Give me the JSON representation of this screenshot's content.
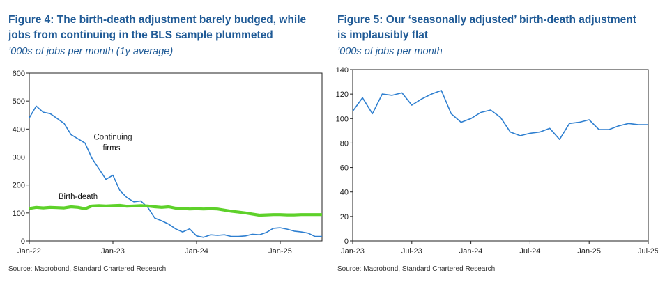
{
  "colors": {
    "title": "#1f5a96",
    "line_blue": "#2e7fd0",
    "line_green": "#5ed12a",
    "axis": "#222222"
  },
  "left": {
    "title": "Figure 4: The birth-death adjustment barely budged, while jobs from continuing in the BLS sample plummeted",
    "subtitle": "’000s of jobs per month (1y average)",
    "source": "Source: Macrobond, Standard Chartered Research",
    "annotations": {
      "continuing_line1": "Continuing",
      "continuing_line2": "firms",
      "birth_death": "Birth-death"
    }
  },
  "right": {
    "title": "Figure 5: Our ‘seasonally adjusted’ birth-death adjustment is implausibly flat",
    "subtitle": "’000s of jobs per month",
    "source": "Source: Macrobond, Standard Chartered Research"
  },
  "chart_data": [
    {
      "type": "line",
      "title": "Figure 4: The birth-death adjustment barely budged, while jobs from continuing in the BLS sample plummeted",
      "ylabel": "’000s of jobs per month (1y average)",
      "x": [
        "2022-01",
        "2022-02",
        "2022-03",
        "2022-04",
        "2022-05",
        "2022-06",
        "2022-07",
        "2022-08",
        "2022-09",
        "2022-10",
        "2022-11",
        "2022-12",
        "2023-01",
        "2023-02",
        "2023-03",
        "2023-04",
        "2023-05",
        "2023-06",
        "2023-07",
        "2023-08",
        "2023-09",
        "2023-10",
        "2023-11",
        "2023-12",
        "2024-01",
        "2024-02",
        "2024-03",
        "2024-04",
        "2024-05",
        "2024-06",
        "2024-07",
        "2024-08",
        "2024-09",
        "2024-10",
        "2024-11",
        "2024-12",
        "2025-01",
        "2025-02",
        "2025-03",
        "2025-04",
        "2025-05",
        "2025-06",
        "2025-07"
      ],
      "x_ticks": [
        "Jan-22",
        "Jan-23",
        "Jan-24",
        "Jan-25"
      ],
      "x_tick_dates": [
        "2022-01",
        "2023-01",
        "2024-01",
        "2025-01"
      ],
      "ylim": [
        0,
        600
      ],
      "y_ticks": [
        0,
        100,
        200,
        300,
        400,
        500,
        600
      ],
      "grid": false,
      "series": [
        {
          "name": "Continuing firms",
          "color": "#2e7fd0",
          "values": [
            440,
            482,
            460,
            455,
            438,
            420,
            380,
            365,
            350,
            295,
            258,
            220,
            235,
            180,
            155,
            140,
            143,
            120,
            82,
            72,
            60,
            43,
            32,
            43,
            18,
            13,
            22,
            20,
            22,
            16,
            16,
            18,
            24,
            22,
            30,
            45,
            47,
            42,
            35,
            32,
            28,
            16,
            16
          ]
        },
        {
          "name": "Birth-death",
          "color": "#5ed12a",
          "values": [
            116,
            120,
            118,
            120,
            119,
            118,
            122,
            120,
            115,
            125,
            126,
            125,
            126,
            127,
            124,
            125,
            126,
            125,
            122,
            120,
            122,
            117,
            116,
            114,
            115,
            114,
            115,
            114,
            110,
            106,
            103,
            100,
            96,
            92,
            93,
            94,
            94,
            93,
            93,
            94,
            94,
            94,
            94
          ]
        }
      ]
    },
    {
      "type": "line",
      "title": "Figure 5: Our ‘seasonally adjusted’ birth-death adjustment is implausibly flat",
      "ylabel": "’000s of jobs per month",
      "x": [
        "2023-01",
        "2023-02",
        "2023-03",
        "2023-04",
        "2023-05",
        "2023-06",
        "2023-07",
        "2023-08",
        "2023-09",
        "2023-10",
        "2023-11",
        "2023-12",
        "2024-01",
        "2024-02",
        "2024-03",
        "2024-04",
        "2024-05",
        "2024-06",
        "2024-07",
        "2024-08",
        "2024-09",
        "2024-10",
        "2024-11",
        "2024-12",
        "2025-01",
        "2025-02",
        "2025-03",
        "2025-04",
        "2025-05",
        "2025-06",
        "2025-07"
      ],
      "x_ticks": [
        "Jan-23",
        "Jul-23",
        "Jan-24",
        "Jul-24",
        "Jan-25",
        "Jul-25"
      ],
      "x_tick_dates": [
        "2023-01",
        "2023-07",
        "2024-01",
        "2024-07",
        "2025-01",
        "2025-07"
      ],
      "ylim": [
        0,
        140
      ],
      "y_ticks": [
        0,
        20,
        40,
        60,
        80,
        100,
        120,
        140
      ],
      "grid": false,
      "series": [
        {
          "color": "#2e7fd0",
          "values": [
            106,
            117,
            104,
            120,
            119,
            121,
            111,
            116,
            120,
            123,
            104,
            97,
            100,
            105,
            107,
            101,
            89,
            86,
            88,
            89,
            92,
            83,
            96,
            97,
            99,
            91,
            91,
            94,
            96,
            95,
            95
          ]
        }
      ]
    }
  ]
}
